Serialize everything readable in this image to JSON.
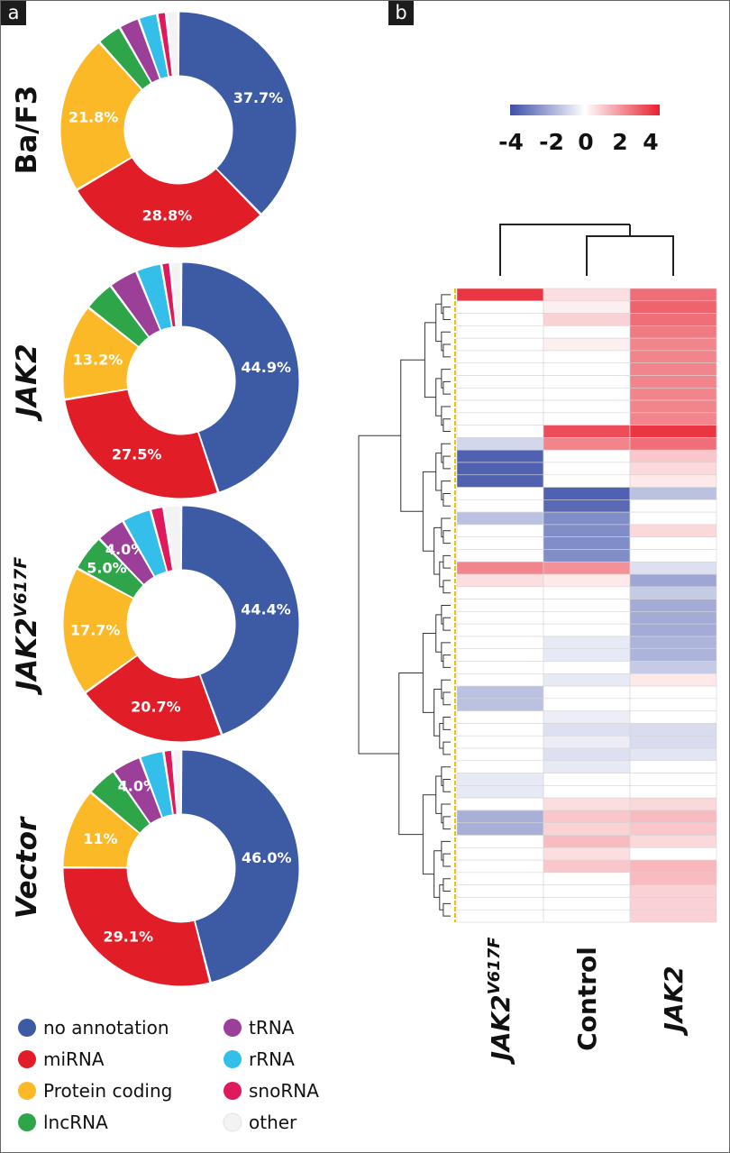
{
  "panel_labels": {
    "a": "a",
    "b": "b"
  },
  "chart_data": [
    {
      "type": "pie",
      "donut": true,
      "legend_position": "bottom-left",
      "categories": [
        "no annotation",
        "miRNA",
        "Protein coding",
        "lncRNA",
        "tRNA",
        "rRNA",
        "snoRNA",
        "other"
      ],
      "colors": [
        "#3d5ba5",
        "#e11d28",
        "#fbb928",
        "#2fa54a",
        "#9c3f98",
        "#33bfea",
        "#e0185c",
        "#f3f3f3"
      ],
      "charts": [
        {
          "label": "Ba/F3",
          "values": [
            37.7,
            28.8,
            21.8,
            3.4,
            2.8,
            2.6,
            1.2,
            1.7
          ],
          "value_labels": [
            "37.7%",
            "28.8%",
            "21.8%",
            "",
            "",
            "",
            "",
            ""
          ]
        },
        {
          "label": "JAK2",
          "values": [
            44.9,
            27.5,
            13.2,
            4.2,
            4.0,
            3.5,
            1.2,
            1.5
          ],
          "value_labels": [
            "44.9%",
            "27.5%",
            "13.2%",
            "",
            "",
            "",
            "",
            ""
          ]
        },
        {
          "label": "JAK2",
          "label_superscript": "V617F",
          "values": [
            44.4,
            20.7,
            17.7,
            5.0,
            4.0,
            4.0,
            1.8,
            2.4
          ],
          "value_labels": [
            "44.4%",
            "20.7%",
            "17.7%",
            "5.0%",
            "4.0%",
            "",
            "",
            ""
          ]
        },
        {
          "label": "Vector",
          "values": [
            46.0,
            29.1,
            11.0,
            4.2,
            4.0,
            3.3,
            1.2,
            1.2
          ],
          "value_labels": [
            "46.0%",
            "29.1%",
            "11%",
            "",
            "4.0%",
            "",
            "",
            ""
          ]
        }
      ]
    },
    {
      "type": "heatmap",
      "color_scale": {
        "min": -4,
        "max": 4,
        "low": "#3d4fa8",
        "mid": "#ffffff",
        "high": "#e8202e",
        "ticks": [
          "-4",
          "-2",
          "0",
          "2",
          "4"
        ]
      },
      "columns": [
        {
          "label": "JAK2",
          "superscript": "V617F"
        },
        {
          "label": "Control",
          "superscript": ""
        },
        {
          "label": "JAK2",
          "superscript": ""
        }
      ],
      "rows": [
        [
          3.6,
          0.6,
          2.6
        ],
        [
          0,
          0.3,
          2.8
        ],
        [
          0,
          0.8,
          2.6
        ],
        [
          0,
          0,
          2.4
        ],
        [
          0,
          0.3,
          2.2
        ],
        [
          0,
          0,
          2.2
        ],
        [
          0,
          0,
          2.2
        ],
        [
          0,
          0,
          2.2
        ],
        [
          0,
          0,
          2.2
        ],
        [
          0,
          0,
          2.2
        ],
        [
          0,
          0,
          2.2
        ],
        [
          0,
          3.2,
          3.6
        ],
        [
          -0.9,
          2.2,
          2.6
        ],
        [
          -3.6,
          0,
          1.0
        ],
        [
          -3.6,
          0,
          0.7
        ],
        [
          -3.6,
          0,
          0.4
        ],
        [
          0,
          -3.6,
          -1.4
        ],
        [
          0,
          -3.4,
          0
        ],
        [
          -1.4,
          -2.6,
          0
        ],
        [
          0,
          -2.6,
          0.7
        ],
        [
          0,
          -2.6,
          0
        ],
        [
          0,
          -2.6,
          0
        ],
        [
          2.2,
          2.0,
          -0.7
        ],
        [
          0.6,
          0.4,
          -2.0
        ],
        [
          0,
          0,
          -1.2
        ],
        [
          0,
          0,
          -1.9
        ],
        [
          0,
          0,
          -1.9
        ],
        [
          0,
          0,
          -1.9
        ],
        [
          0,
          -0.5,
          -1.7
        ],
        [
          0,
          -0.5,
          -1.7
        ],
        [
          0,
          0,
          -1.2
        ],
        [
          0,
          -0.5,
          0.4
        ],
        [
          -1.4,
          0,
          0
        ],
        [
          -1.4,
          0,
          0
        ],
        [
          0,
          -0.4,
          0
        ],
        [
          0,
          -0.7,
          -0.8
        ],
        [
          0,
          -0.4,
          -0.8
        ],
        [
          0,
          -0.7,
          -0.6
        ],
        [
          0,
          -0.5,
          0
        ],
        [
          -0.5,
          0,
          0
        ],
        [
          -0.5,
          0,
          0
        ],
        [
          0,
          0.6,
          0.7
        ],
        [
          -1.8,
          1.0,
          1.2
        ],
        [
          -1.8,
          0.8,
          1.0
        ],
        [
          0,
          1.2,
          0.7
        ],
        [
          0,
          0.6,
          0
        ],
        [
          0,
          1.0,
          1.3
        ],
        [
          0,
          0,
          1.2
        ],
        [
          0,
          0,
          0.8
        ],
        [
          0,
          0,
          0.8
        ],
        [
          0,
          0,
          0.8
        ]
      ]
    }
  ],
  "legend": [
    {
      "label": "no annotation",
      "color": "#3d5ba5"
    },
    {
      "label": "tRNA",
      "color": "#9c3f98"
    },
    {
      "label": "miRNA",
      "color": "#e11d28"
    },
    {
      "label": "rRNA",
      "color": "#33bfea"
    },
    {
      "label": "Protein coding",
      "color": "#fbb928"
    },
    {
      "label": "snoRNA",
      "color": "#e0185c"
    },
    {
      "label": "lncRNA",
      "color": "#2fa54a"
    },
    {
      "label": "other",
      "color": "#f3f3f3"
    }
  ]
}
